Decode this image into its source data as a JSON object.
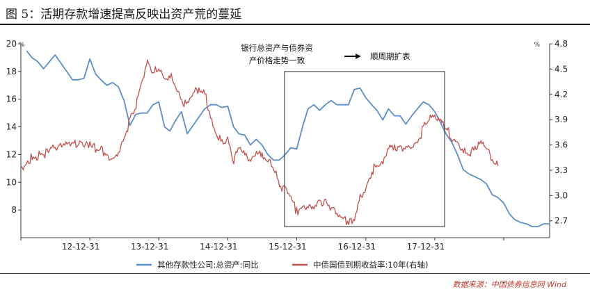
{
  "figure": {
    "title": "图 5：活期存款增速提高反映出资产荒的蔓延",
    "source": "数据来源：中国债券信息网 Wind"
  },
  "chart_data": {
    "type": "line",
    "left_axis": {
      "unit": "%",
      "range": [
        6,
        20
      ],
      "ticks": [
        8,
        10,
        12,
        14,
        16,
        18,
        20
      ]
    },
    "right_axis": {
      "unit": "%",
      "range": [
        2.5,
        4.8
      ],
      "ticks": [
        2.7,
        3.0,
        3.3,
        3.6,
        3.9,
        4.2,
        4.5,
        4.8
      ]
    },
    "x_ticks": [
      "12-12-31",
      "13-12-31",
      "14-12-31",
      "15-12-31",
      "16-12-31",
      "17-12-31"
    ],
    "annotation": {
      "line1": "银行总资产与债券资",
      "line2": "产价格走势一致",
      "arrow_label": "顺周期扩表"
    },
    "series": [
      {
        "name": "其他存款性公司:总资产:同比",
        "axis": "left",
        "color": "#5b8ec9",
        "points": [
          [
            "2012-01-31",
            19.5
          ],
          [
            "2012-02-29",
            19.0
          ],
          [
            "2012-03-31",
            18.7
          ],
          [
            "2012-04-30",
            18.2
          ],
          [
            "2012-05-31",
            18.7
          ],
          [
            "2012-06-30",
            19.2
          ],
          [
            "2012-07-31",
            18.6
          ],
          [
            "2012-08-31",
            18.0
          ],
          [
            "2012-09-30",
            17.4
          ],
          [
            "2012-10-31",
            17.4
          ],
          [
            "2012-11-30",
            17.5
          ],
          [
            "2012-12-31",
            18.9
          ],
          [
            "2013-01-31",
            17.8
          ],
          [
            "2013-02-28",
            17.4
          ],
          [
            "2013-03-31",
            17.0
          ],
          [
            "2013-04-30",
            17.2
          ],
          [
            "2013-05-31",
            16.9
          ],
          [
            "2013-06-30",
            15.9
          ],
          [
            "2013-07-31",
            14.1
          ],
          [
            "2013-08-31",
            14.9
          ],
          [
            "2013-09-30",
            15.0
          ],
          [
            "2013-10-31",
            15.0
          ],
          [
            "2013-11-30",
            15.6
          ],
          [
            "2013-12-31",
            15.8
          ],
          [
            "2014-01-31",
            14.0
          ],
          [
            "2014-02-28",
            13.7
          ],
          [
            "2014-03-31",
            14.5
          ],
          [
            "2014-04-30",
            15.1
          ],
          [
            "2014-05-31",
            13.5
          ],
          [
            "2014-06-30",
            14.1
          ],
          [
            "2014-07-31",
            14.7
          ],
          [
            "2014-08-31",
            15.3
          ],
          [
            "2014-09-30",
            15.6
          ],
          [
            "2014-10-31",
            15.6
          ],
          [
            "2014-11-30",
            15.4
          ],
          [
            "2014-12-31",
            15.5
          ],
          [
            "2015-01-31",
            14.0
          ],
          [
            "2015-02-28",
            13.5
          ],
          [
            "2015-03-31",
            13.4
          ],
          [
            "2015-04-30",
            12.7
          ],
          [
            "2015-05-31",
            13.1
          ],
          [
            "2015-06-30",
            12.7
          ],
          [
            "2015-07-31",
            12.0
          ],
          [
            "2015-08-31",
            11.6
          ],
          [
            "2015-09-30",
            11.6
          ],
          [
            "2015-10-31",
            12.0
          ],
          [
            "2015-11-30",
            12.5
          ],
          [
            "2015-12-31",
            12.4
          ],
          [
            "2016-01-31",
            14.0
          ],
          [
            "2016-02-29",
            15.3
          ],
          [
            "2016-03-31",
            15.6
          ],
          [
            "2016-04-30",
            15.2
          ],
          [
            "2016-05-31",
            15.6
          ],
          [
            "2016-06-30",
            15.9
          ],
          [
            "2016-07-31",
            15.6
          ],
          [
            "2016-08-31",
            15.6
          ],
          [
            "2016-09-30",
            15.6
          ],
          [
            "2016-10-31",
            16.7
          ],
          [
            "2016-11-30",
            16.8
          ],
          [
            "2016-12-31",
            16.1
          ],
          [
            "2017-01-31",
            15.6
          ],
          [
            "2017-02-28",
            15.2
          ],
          [
            "2017-03-31",
            14.5
          ],
          [
            "2017-04-30",
            15.3
          ],
          [
            "2017-05-31",
            14.8
          ],
          [
            "2017-06-30",
            14.8
          ],
          [
            "2017-07-31",
            14.2
          ],
          [
            "2017-08-31",
            14.8
          ],
          [
            "2017-09-30",
            15.3
          ],
          [
            "2017-10-31",
            15.8
          ],
          [
            "2017-11-30",
            15.6
          ],
          [
            "2017-12-31",
            15.1
          ],
          [
            "2018-01-31",
            14.3
          ],
          [
            "2018-02-28",
            13.5
          ],
          [
            "2018-03-31",
            12.9
          ],
          [
            "2018-04-30",
            12.0
          ],
          [
            "2018-05-31",
            10.9
          ],
          [
            "2018-06-30",
            10.6
          ],
          [
            "2018-07-31",
            10.4
          ],
          [
            "2018-08-31",
            10.2
          ],
          [
            "2018-09-30",
            9.9
          ],
          [
            "2018-10-31",
            9.1
          ],
          [
            "2018-11-30",
            8.9
          ],
          [
            "2018-12-31",
            8.5
          ],
          [
            "2019-01-31",
            7.7
          ],
          [
            "2019-02-28",
            7.3
          ],
          [
            "2019-03-31",
            7.1
          ],
          [
            "2019-04-30",
            7.0
          ],
          [
            "2019-05-31",
            6.8
          ],
          [
            "2019-06-30",
            6.8
          ],
          [
            "2019-07-31",
            7.0
          ],
          [
            "2019-08-31",
            7.0
          ]
        ]
      },
      {
        "name": "中债国债到期收益率:10年(右轴)",
        "axis": "right",
        "color": "#c0504d",
        "points": [
          [
            "2012-01-01",
            3.35
          ],
          [
            "2012-03-01",
            3.45
          ],
          [
            "2012-05-01",
            3.5
          ],
          [
            "2012-07-01",
            3.55
          ],
          [
            "2012-09-01",
            3.58
          ],
          [
            "2012-11-01",
            3.6
          ],
          [
            "2012-12-31",
            3.6
          ],
          [
            "2013-03-01",
            3.55
          ],
          [
            "2013-05-01",
            3.45
          ],
          [
            "2013-06-01",
            3.55
          ],
          [
            "2013-07-01",
            3.7
          ],
          [
            "2013-08-01",
            3.9
          ],
          [
            "2013-09-01",
            4.05
          ],
          [
            "2013-10-01",
            4.3
          ],
          [
            "2013-11-01",
            4.55
          ],
          [
            "2013-12-01",
            4.45
          ],
          [
            "2013-12-31",
            4.55
          ],
          [
            "2014-02-01",
            4.4
          ],
          [
            "2014-03-01",
            4.45
          ],
          [
            "2014-04-01",
            4.3
          ],
          [
            "2014-05-01",
            4.1
          ],
          [
            "2014-06-01",
            4.05
          ],
          [
            "2014-07-01",
            4.2
          ],
          [
            "2014-08-01",
            4.25
          ],
          [
            "2014-09-01",
            4.2
          ],
          [
            "2014-10-01",
            3.95
          ],
          [
            "2014-11-01",
            3.75
          ],
          [
            "2014-12-01",
            3.65
          ],
          [
            "2014-12-31",
            3.65
          ],
          [
            "2015-02-01",
            3.4
          ],
          [
            "2015-03-01",
            3.55
          ],
          [
            "2015-04-01",
            3.45
          ],
          [
            "2015-05-01",
            3.4
          ],
          [
            "2015-06-01",
            3.55
          ],
          [
            "2015-07-01",
            3.5
          ],
          [
            "2015-08-01",
            3.45
          ],
          [
            "2015-09-01",
            3.35
          ],
          [
            "2015-10-01",
            3.1
          ],
          [
            "2015-11-01",
            3.05
          ],
          [
            "2015-12-01",
            2.95
          ],
          [
            "2015-12-31",
            2.8
          ],
          [
            "2016-02-01",
            2.85
          ],
          [
            "2016-03-01",
            2.9
          ],
          [
            "2016-04-01",
            2.9
          ],
          [
            "2016-05-01",
            2.95
          ],
          [
            "2016-06-01",
            2.9
          ],
          [
            "2016-07-01",
            2.85
          ],
          [
            "2016-08-01",
            2.75
          ],
          [
            "2016-09-01",
            2.7
          ],
          [
            "2016-10-01",
            2.68
          ],
          [
            "2016-11-01",
            2.75
          ],
          [
            "2016-12-01",
            3.0
          ],
          [
            "2016-12-31",
            3.1
          ],
          [
            "2017-02-01",
            3.3
          ],
          [
            "2017-03-01",
            3.35
          ],
          [
            "2017-04-01",
            3.35
          ],
          [
            "2017-05-01",
            3.55
          ],
          [
            "2017-06-01",
            3.55
          ],
          [
            "2017-07-01",
            3.55
          ],
          [
            "2017-08-01",
            3.6
          ],
          [
            "2017-09-01",
            3.62
          ],
          [
            "2017-10-01",
            3.65
          ],
          [
            "2017-11-01",
            3.8
          ],
          [
            "2017-12-01",
            3.9
          ],
          [
            "2017-12-31",
            3.9
          ],
          [
            "2018-02-01",
            3.85
          ],
          [
            "2018-03-01",
            3.8
          ],
          [
            "2018-04-01",
            3.7
          ],
          [
            "2018-05-01",
            3.65
          ],
          [
            "2018-06-01",
            3.55
          ],
          [
            "2018-07-01",
            3.5
          ],
          [
            "2018-08-01",
            3.55
          ],
          [
            "2018-09-01",
            3.6
          ],
          [
            "2018-10-01",
            3.55
          ],
          [
            "2018-11-01",
            3.4
          ],
          [
            "2018-12-01",
            3.35
          ]
        ]
      }
    ]
  }
}
